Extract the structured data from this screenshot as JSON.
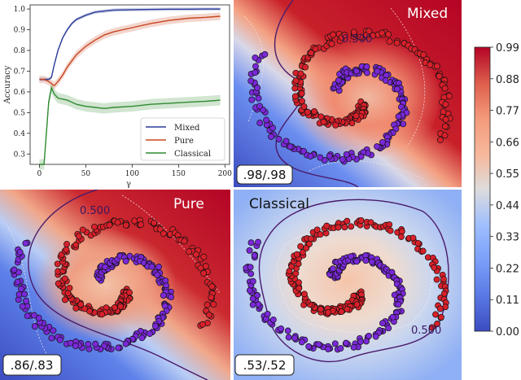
{
  "chart_data": [
    {
      "type": "line",
      "xlabel": "γ",
      "ylabel": "Accuracy",
      "xlim": [
        -10,
        205
      ],
      "ylim": [
        0.25,
        1.02
      ],
      "x_ticks": [
        "0",
        "50",
        "100",
        "150",
        "200"
      ],
      "y_ticks": [
        "0.3",
        "0.4",
        "0.5",
        "0.6",
        "0.7",
        "0.8",
        "0.9",
        "1.0"
      ],
      "legend_position": "lower-right",
      "x": [
        0,
        5,
        10,
        13,
        16,
        20,
        25,
        30,
        35,
        40,
        50,
        60,
        70,
        80,
        100,
        120,
        140,
        160,
        180,
        195
      ],
      "series": [
        {
          "name": "Mixed",
          "color": "#2a3b9a",
          "values": [
            0.66,
            0.66,
            0.66,
            0.67,
            0.73,
            0.8,
            0.86,
            0.9,
            0.93,
            0.95,
            0.97,
            0.985,
            0.99,
            0.995,
            0.997,
            0.998,
            0.999,
            0.999,
            1.0,
            1.0
          ]
        },
        {
          "name": "Pure",
          "color": "#c8461f",
          "values": [
            0.66,
            0.66,
            0.65,
            0.64,
            0.63,
            0.65,
            0.68,
            0.72,
            0.75,
            0.78,
            0.82,
            0.85,
            0.875,
            0.89,
            0.91,
            0.93,
            0.945,
            0.955,
            0.96,
            0.965
          ]
        },
        {
          "name": "Classical",
          "color": "#2f8a2f",
          "values": [
            0.25,
            0.25,
            0.55,
            0.62,
            0.59,
            0.57,
            0.565,
            0.56,
            0.55,
            0.54,
            0.53,
            0.525,
            0.52,
            0.525,
            0.53,
            0.54,
            0.545,
            0.55,
            0.555,
            0.56
          ]
        }
      ]
    },
    {
      "type": "heatmap",
      "panels": [
        {
          "title": "Mixed",
          "score": ".98/.98"
        },
        {
          "title": "Pure",
          "score": ".86/.83"
        },
        {
          "title": "Classical",
          "score": ".53/.52"
        }
      ],
      "contour_label": "0.500",
      "colorbar": {
        "ticks": [
          "0.00",
          "0.11",
          "0.22",
          "0.33",
          "0.44",
          "0.55",
          "0.66",
          "0.77",
          "0.88",
          "0.99"
        ],
        "min": 0.0,
        "max": 0.99,
        "colormap": "coolwarm"
      },
      "class_colors": {
        "class_a": "#d8202a",
        "class_b": "#7a28d8"
      }
    }
  ]
}
